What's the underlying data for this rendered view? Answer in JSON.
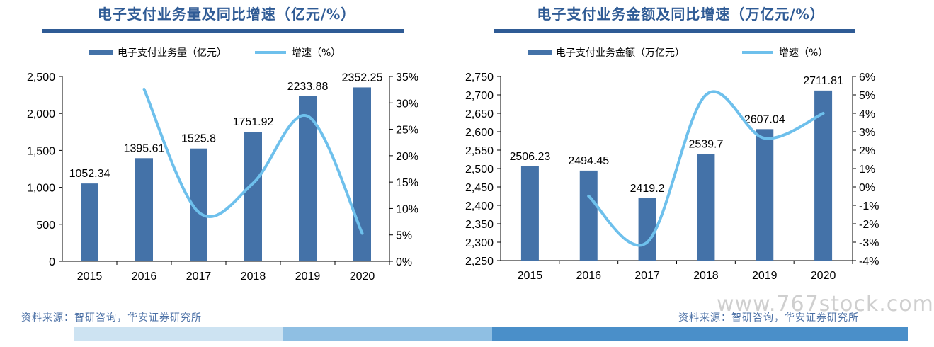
{
  "left_panel": {
    "title": "电子支付业务量及同比增速（亿元/%）",
    "source": "资料来源：智研咨询，华安证券研究所"
  },
  "right_panel": {
    "title": "电子支付业务金额及同比增速（万亿元/%）",
    "source": "资料来源：智研咨询，华安证券研究所"
  },
  "watermark": "www.767stock.com",
  "colors": {
    "bar": "#4472a8",
    "line": "#6ec0ec",
    "title": "#2f5b95",
    "strip1": "#cde3f2",
    "strip2": "#8fbfe3",
    "strip3": "#4a8fc9"
  },
  "chart_data": [
    {
      "type": "bar",
      "categories": [
        "2015",
        "2016",
        "2017",
        "2018",
        "2019",
        "2020"
      ],
      "series": [
        {
          "name": "电子支付业务量（亿元）",
          "axis": "left",
          "values": [
            1052.34,
            1395.61,
            1525.8,
            1751.92,
            2233.88,
            2352.25
          ],
          "data_labels": [
            "1052.34",
            "1395.61",
            "1525.8",
            "1751.92",
            "2233.88",
            "2352.25"
          ]
        },
        {
          "name": "增速（%）",
          "type": "line",
          "axis": "right",
          "values": [
            null,
            32.6,
            9.3,
            14.8,
            27.5,
            5.3
          ]
        }
      ],
      "ylim": [
        0,
        2500
      ],
      "yticks": [
        "0",
        "500",
        "1,000",
        "1,500",
        "2,000",
        "2,500"
      ],
      "y2lim": [
        0,
        35
      ],
      "y2ticks": [
        "0%",
        "5%",
        "10%",
        "15%",
        "20%",
        "25%",
        "30%",
        "35%"
      ],
      "legend": "top"
    },
    {
      "type": "bar",
      "categories": [
        "2015",
        "2016",
        "2017",
        "2018",
        "2019",
        "2020"
      ],
      "series": [
        {
          "name": "电子支付业务金额（万亿元）",
          "axis": "left",
          "values": [
            2506.23,
            2494.45,
            2419.2,
            2539.7,
            2607.04,
            2711.81
          ],
          "data_labels": [
            "2506.23",
            "2494.45",
            "2419.2",
            "2539.7",
            "2607.04",
            "2711.81"
          ]
        },
        {
          "name": "增速（%）",
          "type": "line",
          "axis": "right",
          "values": [
            null,
            -0.5,
            -3.0,
            5.0,
            2.65,
            4.0
          ]
        }
      ],
      "ylim": [
        2250,
        2750
      ],
      "yticks": [
        "2,250",
        "2,300",
        "2,350",
        "2,400",
        "2,450",
        "2,500",
        "2,550",
        "2,600",
        "2,650",
        "2,700",
        "2,750"
      ],
      "y2lim": [
        -4,
        6
      ],
      "y2ticks": [
        "-4%",
        "-3%",
        "-2%",
        "-1%",
        "0%",
        "1%",
        "2%",
        "3%",
        "4%",
        "5%",
        "6%"
      ],
      "legend": "top"
    }
  ]
}
